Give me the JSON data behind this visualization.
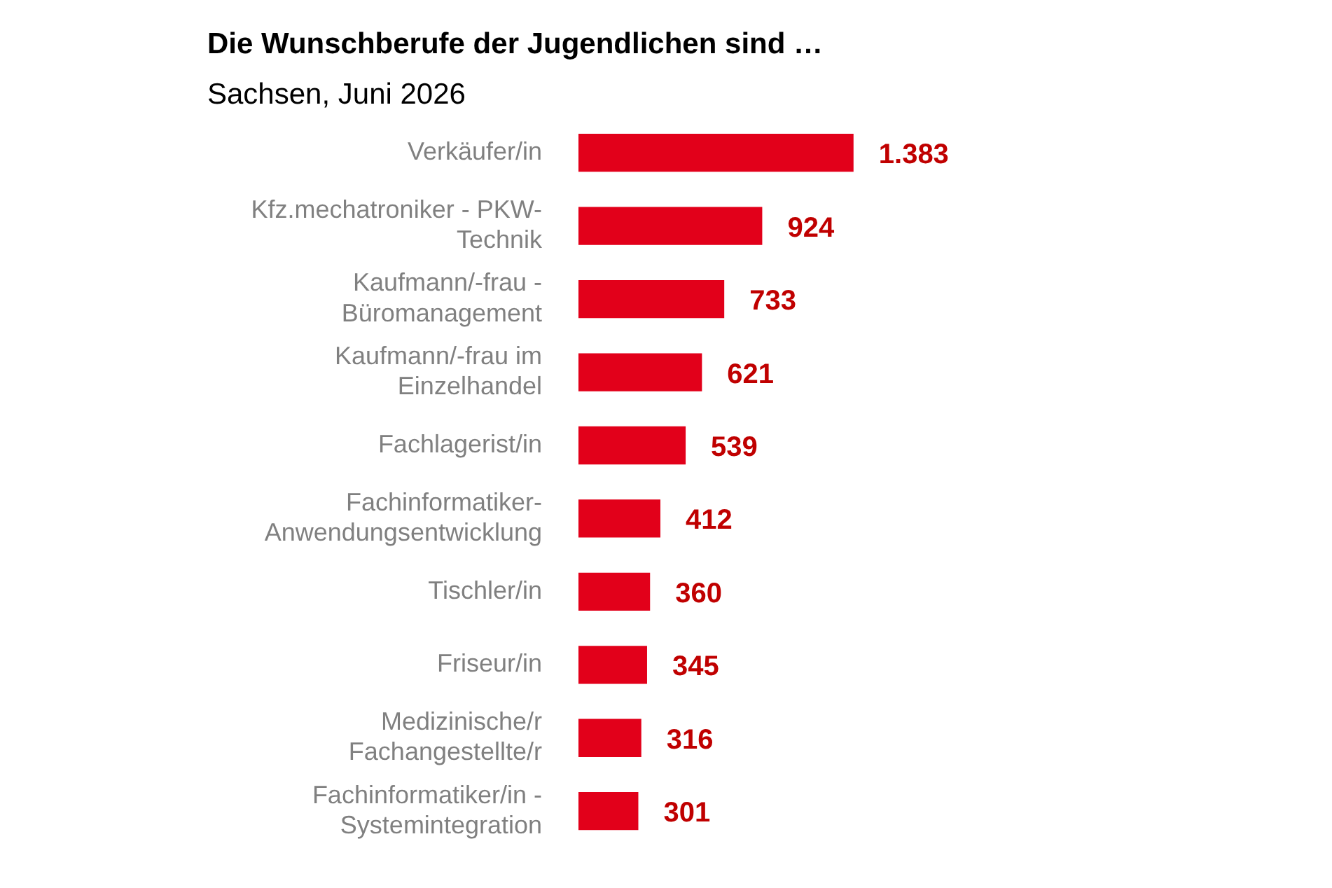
{
  "chart_data": {
    "type": "bar",
    "orientation": "horizontal",
    "title": "Die Wunschberufe der Jugendlichen sind …",
    "subtitle": "Sachsen, Juni 2026",
    "categories": [
      "Verkäufer/in",
      "Kfz.mechatroniker - PKW-\nTechnik",
      "Kaufmann/-frau -\nBüromanagement",
      "Kaufmann/-frau im\nEinzelhandel",
      "Fachlagerist/in",
      "Fachinformatiker-\nAnwendungsentwicklung",
      "Tischler/in",
      "Friseur/in",
      "Medizinische/r\nFachangestellte/r",
      "Fachinformatiker/in -\nSystemintegration"
    ],
    "values": [
      1383,
      924,
      733,
      621,
      539,
      412,
      360,
      345,
      316,
      301
    ],
    "value_labels": [
      "1.383",
      "924",
      "733",
      "621",
      "539",
      "412",
      "360",
      "345",
      "316",
      "301"
    ],
    "color": "#e2001a",
    "grid": false,
    "legend": false
  }
}
